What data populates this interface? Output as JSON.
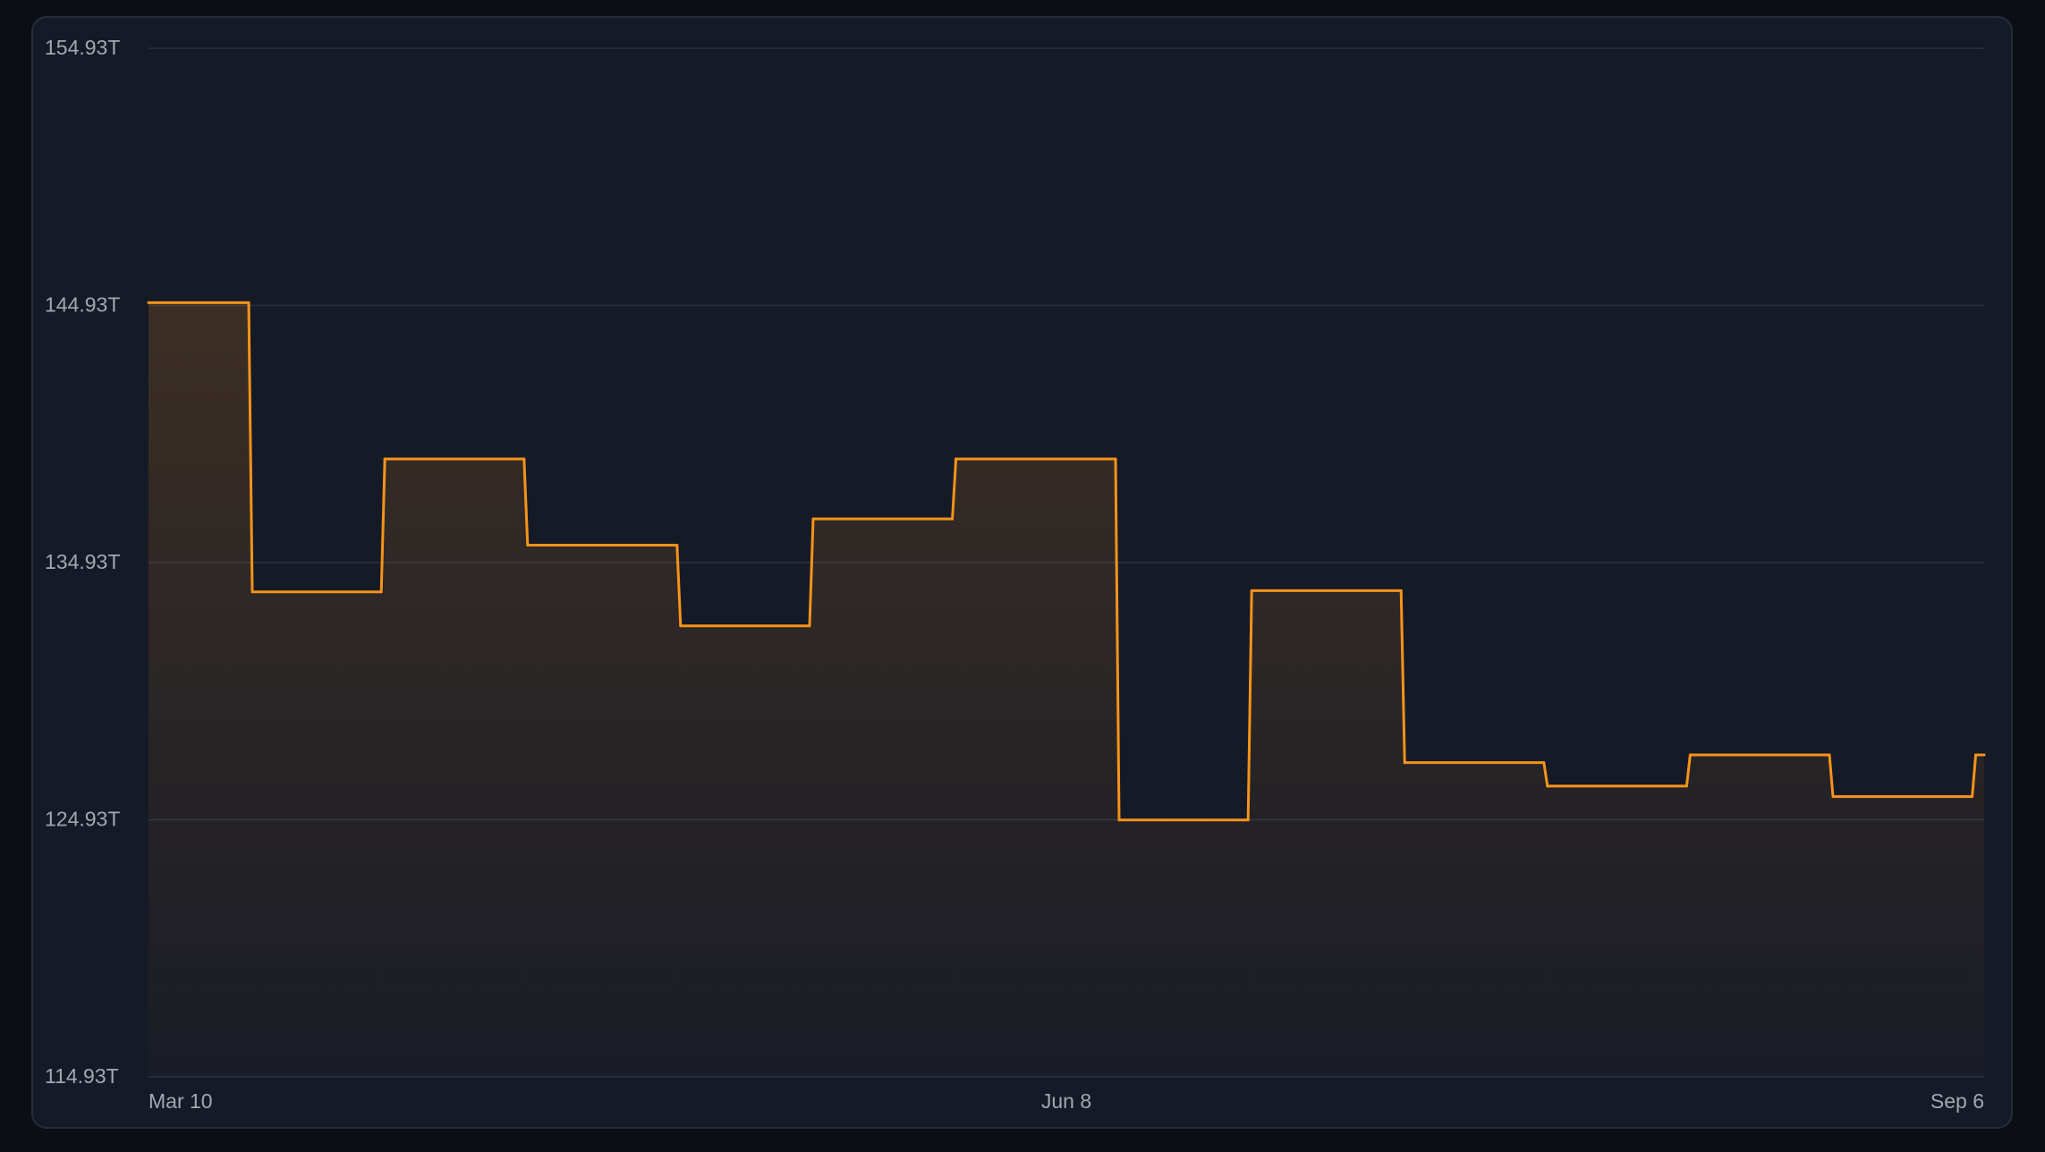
{
  "chart_data": {
    "type": "step",
    "x": [
      "Mar 10",
      "Mar 20",
      "Apr 2",
      "Apr 16",
      "May 1",
      "May 14",
      "May 28",
      "Jun 13",
      "Jun 26",
      "Jul 11",
      "Jul 25",
      "Aug 8",
      "Aug 22",
      "Sep 5"
    ],
    "series": [
      {
        "color": "#f7931a",
        "values": [
          145.04,
          133.79,
          138.96,
          135.61,
          132.47,
          136.63,
          138.96,
          124.92,
          133.84,
          127.15,
          126.24,
          127.45,
          125.83,
          127.45
        ]
      }
    ],
    "xlim": [
      "Mar 10",
      "Sep 6"
    ],
    "xticks": [
      "Mar 10",
      "Jun 8",
      "Sep 6"
    ],
    "ylim": [
      114.93,
      154.93
    ],
    "yticks": [
      {
        "value": 114.93,
        "label": "114.93T"
      },
      {
        "value": 124.93,
        "label": "124.93T"
      },
      {
        "value": 134.93,
        "label": "134.93T"
      },
      {
        "value": 144.93,
        "label": "144.93T"
      },
      {
        "value": 154.93,
        "label": "154.93T"
      }
    ],
    "grid": true
  }
}
